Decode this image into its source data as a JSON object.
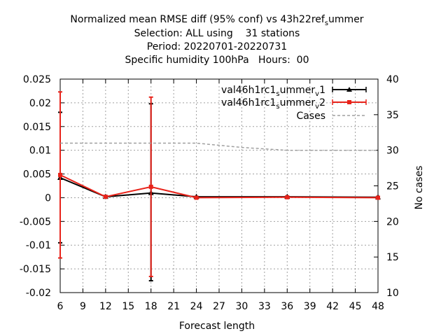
{
  "chart_data": {
    "type": "line",
    "title_lines": [
      "Normalized mean RMSE diff (95% conf) vs 43h22",
      "Selection: ALL using    31 stations",
      "Period: 20220701-20220731",
      "Specific humidity 100hPa   Hours:  00"
    ],
    "title_suffix": {
      "base1": "ref",
      "sub1": "s",
      "base2": "ummer"
    },
    "xlabel": "Forecast length",
    "ylabel_right": "No cases",
    "xlim": [
      6,
      48
    ],
    "ylim": [
      -0.02,
      0.025
    ],
    "y2lim": [
      10,
      40
    ],
    "x_ticks": [
      "6",
      "9",
      "12",
      "15",
      "18",
      "21",
      "24",
      "27",
      "30",
      "33",
      "36",
      "39",
      "42",
      "45",
      "48"
    ],
    "y_ticks": [
      "0.025",
      "0.02",
      "0.015",
      "0.01",
      "0.005",
      "0",
      "-0.005",
      "-0.01",
      "-0.015",
      "-0.02"
    ],
    "y2_ticks": [
      "40",
      "35",
      "30",
      "25",
      "20",
      "15",
      "10"
    ],
    "grid": true,
    "legend_position": "top-right",
    "series": [
      {
        "name_base": "val46h1rc1",
        "name_sub1": "s",
        "name_mid": "ummer",
        "name_sub2": "v",
        "name_end": "1",
        "color": "#000000",
        "marker": "triangle",
        "x": [
          6,
          12,
          18,
          24,
          36,
          48
        ],
        "y": [
          0.0042,
          0.0002,
          0.001,
          0.0002,
          0.0002,
          0.0001
        ],
        "err_low": [
          -0.0095,
          null,
          -0.0175,
          null,
          null,
          null
        ],
        "err_high": [
          0.018,
          null,
          0.0198,
          null,
          null,
          null
        ]
      },
      {
        "name_base": "val46h1rc1",
        "name_sub1": "s",
        "name_mid": "ummer",
        "name_sub2": "v",
        "name_end": "2",
        "color": "#e8231a",
        "marker": "square",
        "x": [
          6,
          12,
          18,
          24,
          36,
          48
        ],
        "y": [
          0.0048,
          0.0002,
          0.0023,
          0.0,
          0.0001,
          0.0
        ],
        "err_low": [
          -0.0127,
          null,
          -0.0166,
          null,
          null,
          null
        ],
        "err_high": [
          0.0223,
          null,
          0.0212,
          null,
          null,
          null
        ]
      },
      {
        "name": "Cases",
        "color": "#a0a0a0",
        "axis": "right",
        "style": "dashed",
        "x": [
          6,
          12,
          18,
          24,
          30,
          36,
          42,
          48
        ],
        "y": [
          31,
          31,
          31,
          31,
          30.4,
          30,
          30,
          30
        ]
      }
    ]
  }
}
